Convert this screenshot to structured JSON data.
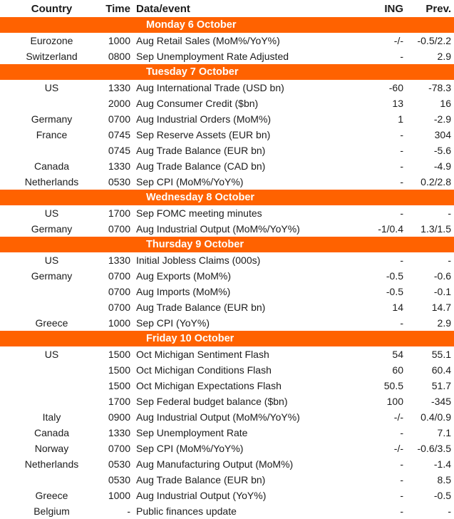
{
  "columns": {
    "country": "Country",
    "time": "Time",
    "event": "Data/event",
    "ing": "ING",
    "prev": "Prev."
  },
  "colors": {
    "accent_orange": "#FF6200",
    "section_text": "#FFFFFF",
    "body_text": "#1C1C1C",
    "background": "#FFFFFF"
  },
  "sections": [
    {
      "title": "Monday 6 October",
      "rows": [
        {
          "country": "Eurozone",
          "time": "1000",
          "event": "Aug Retail Sales (MoM%/YoY%)",
          "ing": "-/-",
          "prev": "-0.5/2.2"
        },
        {
          "country": "Switzerland",
          "time": "0800",
          "event": "Sep Unemployment Rate Adjusted",
          "ing": "-",
          "prev": "2.9"
        }
      ]
    },
    {
      "title": "Tuesday 7 October",
      "rows": [
        {
          "country": "US",
          "time": "1330",
          "event": "Aug International Trade (USD bn)",
          "ing": "-60",
          "prev": "-78.3"
        },
        {
          "country": "",
          "time": "2000",
          "event": "Aug Consumer Credit ($bn)",
          "ing": "13",
          "prev": "16"
        },
        {
          "country": "Germany",
          "time": "0700",
          "event": "Aug Industrial Orders (MoM%)",
          "ing": "1",
          "prev": "-2.9"
        },
        {
          "country": "France",
          "time": "0745",
          "event": "Sep Reserve Assets (EUR bn)",
          "ing": "-",
          "prev": "304"
        },
        {
          "country": "",
          "time": "0745",
          "event": "Aug Trade Balance (EUR bn)",
          "ing": "-",
          "prev": "-5.6"
        },
        {
          "country": "Canada",
          "time": "1330",
          "event": "Aug Trade Balance (CAD bn)",
          "ing": "-",
          "prev": "-4.9"
        },
        {
          "country": "Netherlands",
          "time": "0530",
          "event": "Sep CPI (MoM%/YoY%)",
          "ing": "-",
          "prev": "0.2/2.8"
        }
      ]
    },
    {
      "title": "Wednesday 8 October",
      "rows": [
        {
          "country": "US",
          "time": "1700",
          "event": "Sep FOMC meeting minutes",
          "ing": "-",
          "prev": "-"
        },
        {
          "country": "Germany",
          "time": "0700",
          "event": "Aug Industrial Output (MoM%/YoY%)",
          "ing": "-1/0.4",
          "prev": "1.3/1.5"
        }
      ]
    },
    {
      "title": "Thursday 9 October",
      "rows": [
        {
          "country": "US",
          "time": "1330",
          "event": "Initial Jobless Claims (000s)",
          "ing": "-",
          "prev": "-"
        },
        {
          "country": "Germany",
          "time": "0700",
          "event": "Aug Exports (MoM%)",
          "ing": "-0.5",
          "prev": "-0.6"
        },
        {
          "country": "",
          "time": "0700",
          "event": "Aug Imports (MoM%)",
          "ing": "-0.5",
          "prev": "-0.1"
        },
        {
          "country": "",
          "time": "0700",
          "event": "Aug Trade Balance (EUR bn)",
          "ing": "14",
          "prev": "14.7"
        },
        {
          "country": "Greece",
          "time": "1000",
          "event": "Sep CPI (YoY%)",
          "ing": "-",
          "prev": "2.9"
        }
      ]
    },
    {
      "title": "Friday 10 October",
      "rows": [
        {
          "country": "US",
          "time": "1500",
          "event": "Oct Michigan Sentiment Flash",
          "ing": "54",
          "prev": "55.1"
        },
        {
          "country": "",
          "time": "1500",
          "event": "Oct Michigan Conditions Flash",
          "ing": "60",
          "prev": "60.4"
        },
        {
          "country": "",
          "time": "1500",
          "event": "Oct Michigan Expectations Flash",
          "ing": "50.5",
          "prev": "51.7"
        },
        {
          "country": "",
          "time": "1700",
          "event": "Sep Federal budget balance ($bn)",
          "ing": "100",
          "prev": "-345"
        },
        {
          "country": "Italy",
          "time": "0900",
          "event": "Aug Industrial Output (MoM%/YoY%)",
          "ing": "-/-",
          "prev": "0.4/0.9"
        },
        {
          "country": "Canada",
          "time": "1330",
          "event": "Sep Unemployment Rate",
          "ing": "-",
          "prev": "7.1"
        },
        {
          "country": "Norway",
          "time": "0700",
          "event": "Sep CPI (MoM%/YoY%)",
          "ing": "-/-",
          "prev": "-0.6/3.5"
        },
        {
          "country": "Netherlands",
          "time": "0530",
          "event": "Aug Manufacturing Output (MoM%)",
          "ing": "-",
          "prev": "-1.4"
        },
        {
          "country": "",
          "time": "0530",
          "event": "Aug Trade Balance (EUR bn)",
          "ing": "-",
          "prev": "8.5"
        },
        {
          "country": "Greece",
          "time": "1000",
          "event": "Aug Industrial Output (YoY%)",
          "ing": "-",
          "prev": "-0.5"
        },
        {
          "country": "Belgium",
          "time": "-",
          "event": "Public finances update",
          "ing": "-",
          "prev": "-"
        }
      ]
    }
  ]
}
